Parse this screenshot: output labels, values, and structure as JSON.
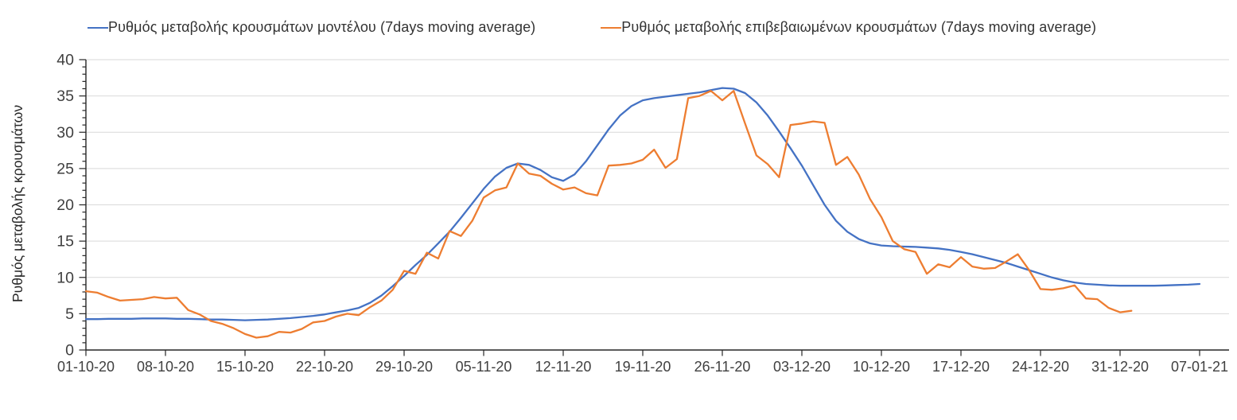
{
  "chart_data": {
    "type": "line",
    "title": "",
    "xlabel": "",
    "ylabel": "Ρυθμός μεταβολής κρουσμάτων",
    "ylim": [
      0,
      40
    ],
    "y_major_step": 5,
    "y_minor_step": 1,
    "grid": "horizontal",
    "legend_position": "top",
    "x_tick_labels": [
      "01-10-20",
      "08-10-20",
      "15-10-20",
      "22-10-20",
      "29-10-20",
      "05-11-20",
      "12-11-20",
      "19-11-20",
      "26-11-20",
      "03-12-20",
      "10-12-20",
      "17-12-20",
      "24-12-20",
      "31-12-20",
      "07-01-21"
    ],
    "days_per_tick": 7,
    "series": [
      {
        "name": "Ρυθμός μεταβολής κρουσμάτων μοντέλου (7days moving average)",
        "color": "#4472c4",
        "start_day": 0,
        "values": [
          4.25,
          4.25,
          4.3,
          4.3,
          4.3,
          4.35,
          4.35,
          4.35,
          4.3,
          4.3,
          4.25,
          4.2,
          4.2,
          4.15,
          4.1,
          4.15,
          4.2,
          4.3,
          4.4,
          4.55,
          4.7,
          4.9,
          5.2,
          5.45,
          5.8,
          6.5,
          7.5,
          8.8,
          10.2,
          11.7,
          13.1,
          14.7,
          16.3,
          18.2,
          20.2,
          22.2,
          23.9,
          25.1,
          25.7,
          25.5,
          24.8,
          23.8,
          23.3,
          24.2,
          26.0,
          28.2,
          30.4,
          32.3,
          33.6,
          34.4,
          34.7,
          34.9,
          35.1,
          35.3,
          35.5,
          35.8,
          36.1,
          36.0,
          35.4,
          34.1,
          32.3,
          30.1,
          27.8,
          25.4,
          22.7,
          20.0,
          17.8,
          16.3,
          15.3,
          14.7,
          14.4,
          14.3,
          14.25,
          14.2,
          14.1,
          14.0,
          13.8,
          13.5,
          13.2,
          12.8,
          12.4,
          12.0,
          11.5,
          11.0,
          10.5,
          10.0,
          9.6,
          9.3,
          9.1,
          9.0,
          8.9,
          8.85,
          8.85,
          8.85,
          8.85,
          8.9,
          8.95,
          9.0,
          9.1
        ]
      },
      {
        "name": "Ρυθμός μεταβολής επιβεβαιωμένων κρουσμάτων (7days moving average)",
        "color": "#ed7d31",
        "start_day": 0,
        "values": [
          8.1,
          7.9,
          7.3,
          6.8,
          6.9,
          7.0,
          7.3,
          7.1,
          7.2,
          5.5,
          4.9,
          4.0,
          3.6,
          3.0,
          2.2,
          1.7,
          1.9,
          2.5,
          2.4,
          2.9,
          3.8,
          4.0,
          4.6,
          5.0,
          4.8,
          5.9,
          6.8,
          8.3,
          10.9,
          10.5,
          13.4,
          12.6,
          16.4,
          15.7,
          17.8,
          21.0,
          22.0,
          22.4,
          25.7,
          24.3,
          24.0,
          22.9,
          22.1,
          22.4,
          21.6,
          21.3,
          25.4,
          25.5,
          25.7,
          26.2,
          27.6,
          25.1,
          26.3,
          34.7,
          35.0,
          35.7,
          34.4,
          35.7,
          31.2,
          26.8,
          25.6,
          23.8,
          31.0,
          31.2,
          31.5,
          31.3,
          25.5,
          26.6,
          24.2,
          20.8,
          18.3,
          15.0,
          13.9,
          13.5,
          10.5,
          11.8,
          11.4,
          12.8,
          11.5,
          11.2,
          11.3,
          12.2,
          13.2,
          11.0,
          8.4,
          8.3,
          8.5,
          8.9,
          7.1,
          7.0,
          5.8,
          5.2,
          5.4
        ]
      }
    ]
  },
  "axes": {
    "y_tick_labels": [
      "0",
      "5",
      "10",
      "15",
      "20",
      "25",
      "30",
      "35",
      "40"
    ],
    "tick_color": "#404040",
    "axis_color": "#262626",
    "grid_color": "#d9d9d9"
  }
}
